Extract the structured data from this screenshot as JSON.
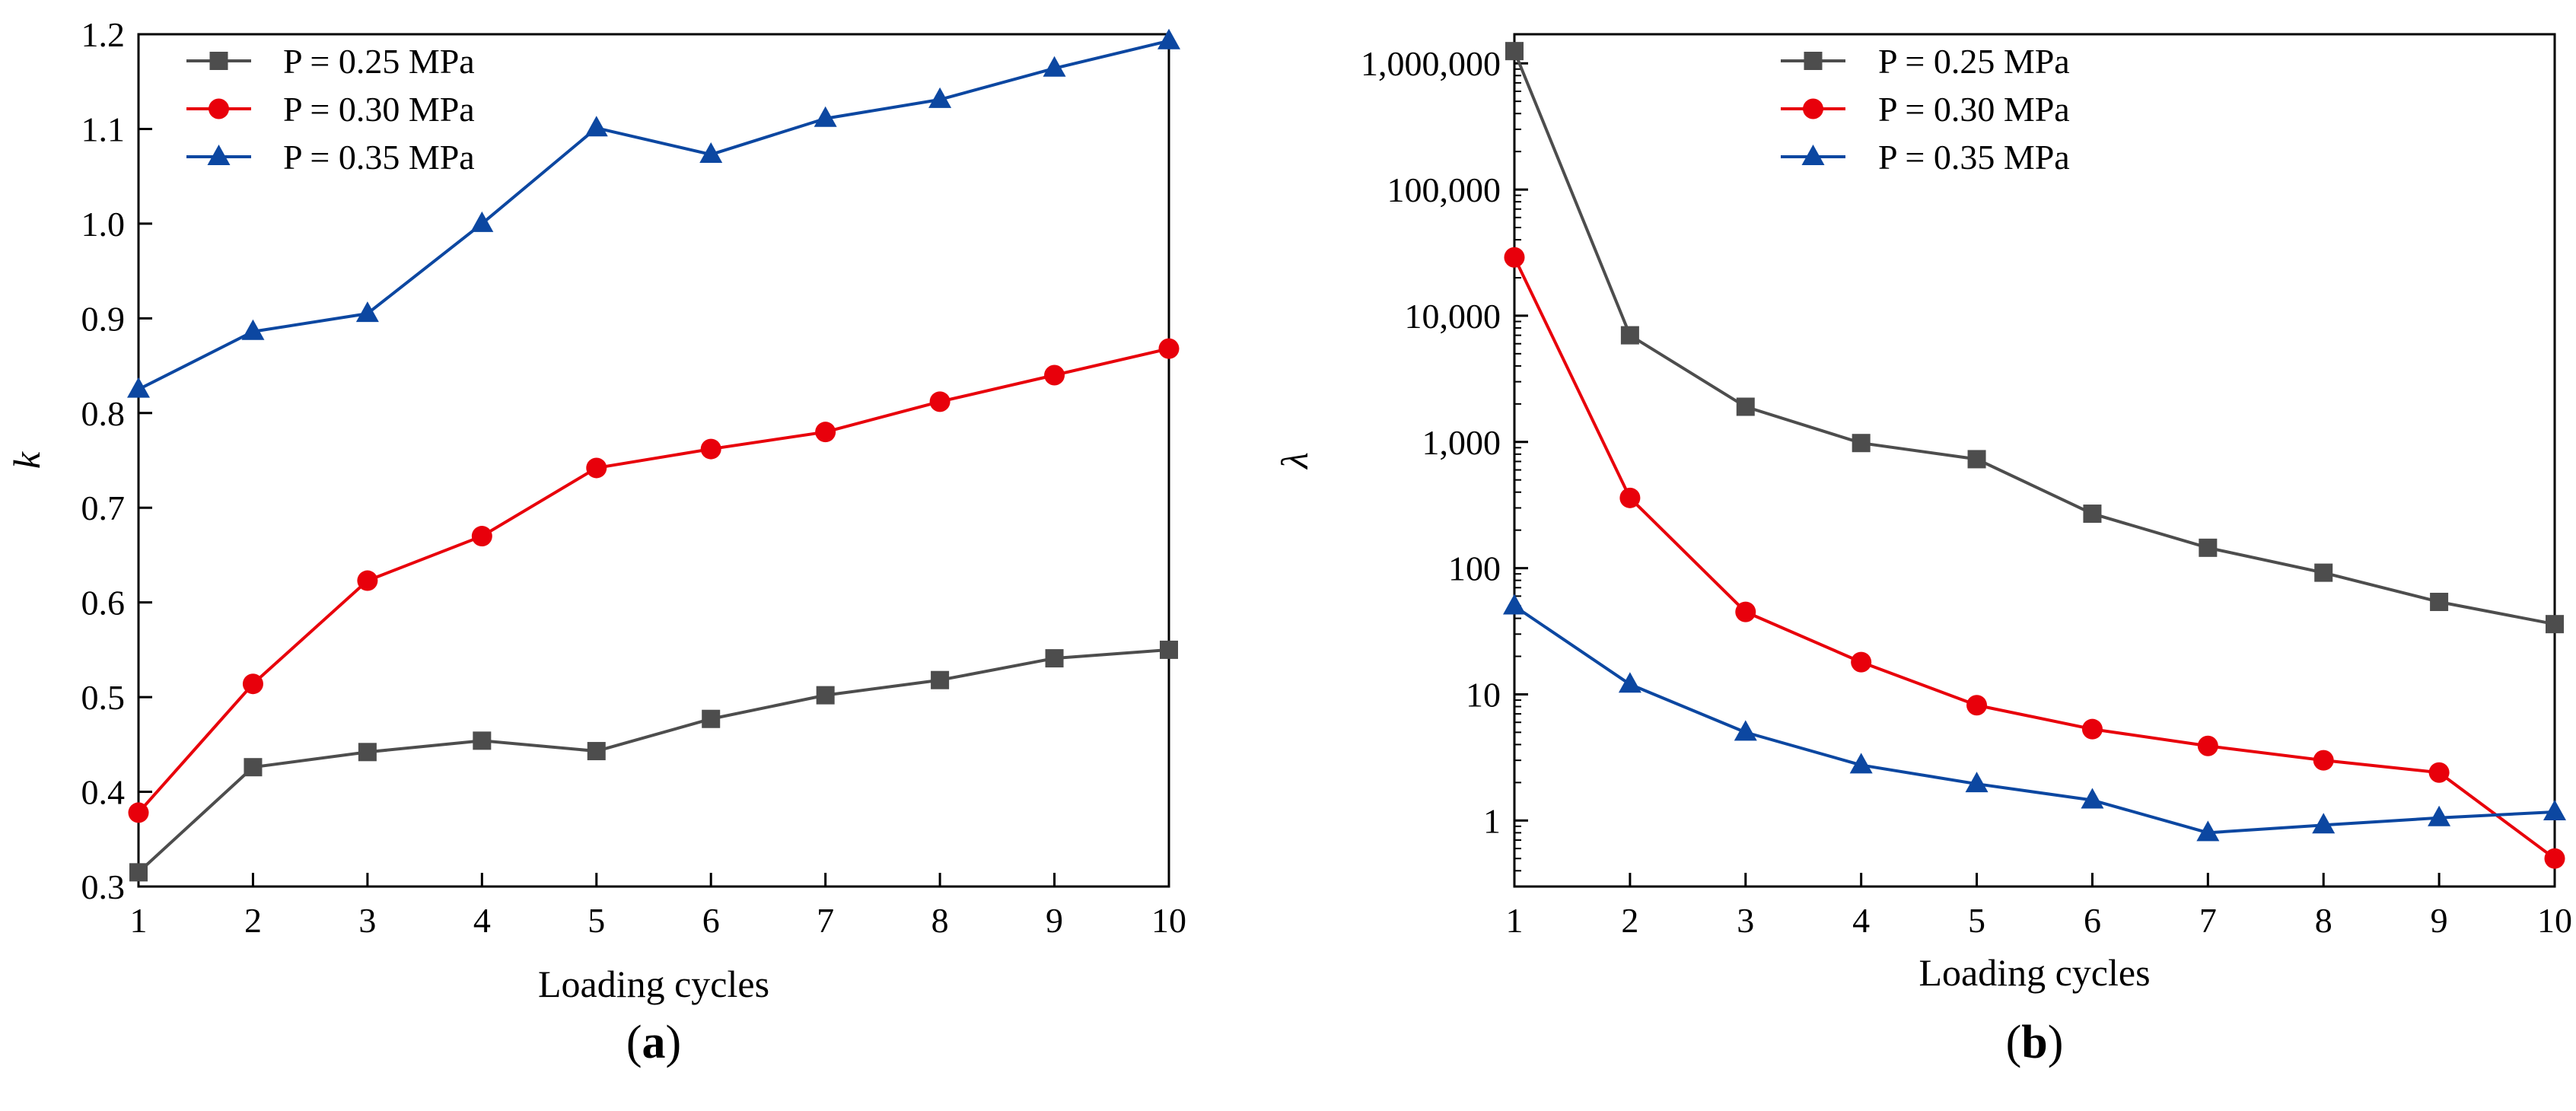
{
  "chart_data": [
    {
      "type": "line",
      "panel_label": "a",
      "xlabel": "Loading cycles",
      "ylabel": "k",
      "x": [
        1,
        2,
        3,
        4,
        5,
        6,
        7,
        8,
        9,
        10
      ],
      "xlim": [
        1,
        10
      ],
      "ylim": [
        0.3,
        1.2
      ],
      "yscale": "linear",
      "xticks": [
        "1",
        "2",
        "3",
        "4",
        "5",
        "6",
        "7",
        "8",
        "9",
        "10"
      ],
      "yticks": [
        0.3,
        0.4,
        0.5,
        0.6,
        0.7,
        0.8,
        0.9,
        1.0,
        1.1,
        1.2
      ],
      "ytick_labels": [
        "0.3",
        "0.4",
        "0.5",
        "0.6",
        "0.7",
        "0.8",
        "0.9",
        "1.0",
        "1.1",
        "1.2"
      ],
      "legend_position": "top-left",
      "series": [
        {
          "name": "P = 0.25 MPa",
          "color": "#4d4d4d",
          "marker": "square",
          "values": [
            0.315,
            0.426,
            0.442,
            0.454,
            0.443,
            0.477,
            0.502,
            0.518,
            0.541,
            0.55
          ]
        },
        {
          "name": "P = 0.30 MPa",
          "color": "#e8000b",
          "marker": "circle",
          "values": [
            0.378,
            0.514,
            0.623,
            0.67,
            0.742,
            0.762,
            0.78,
            0.812,
            0.84,
            0.868
          ]
        },
        {
          "name": "P = 0.35 MPa",
          "color": "#0c47a1",
          "marker": "triangle",
          "values": [
            0.825,
            0.886,
            0.905,
            1.0,
            1.101,
            1.073,
            1.111,
            1.131,
            1.164,
            1.193
          ]
        }
      ]
    },
    {
      "type": "line",
      "panel_label": "b",
      "xlabel": "Loading cycles",
      "ylabel": "λ",
      "x": [
        1,
        2,
        3,
        4,
        5,
        6,
        7,
        8,
        9,
        10
      ],
      "xlim": [
        1,
        10
      ],
      "ylim": [
        0.3,
        1700000
      ],
      "yscale": "log",
      "xticks": [
        "1",
        "2",
        "3",
        "4",
        "5",
        "6",
        "7",
        "8",
        "9",
        "10"
      ],
      "yticks": [
        1,
        10,
        100,
        1000,
        10000,
        100000,
        1000000
      ],
      "ytick_labels": [
        "1",
        "10",
        "100",
        "1,000",
        "10,000",
        "100,000",
        "1,000,000"
      ],
      "legend_position": "top-center",
      "series": [
        {
          "name": "P = 0.25 MPa",
          "color": "#4d4d4d",
          "marker": "square",
          "values": [
            1250000,
            7000,
            1900,
            980,
            730,
            270,
            145,
            92,
            54,
            36
          ]
        },
        {
          "name": "P = 0.30 MPa",
          "color": "#e8000b",
          "marker": "circle",
          "values": [
            29000,
            360,
            45,
            18,
            8.2,
            5.3,
            3.9,
            3.0,
            2.4,
            0.5
          ]
        },
        {
          "name": "P = 0.35 MPa",
          "color": "#0c47a1",
          "marker": "triangle",
          "values": [
            50,
            12,
            5.0,
            2.75,
            1.95,
            1.45,
            0.8,
            0.92,
            1.05,
            1.17
          ]
        }
      ]
    }
  ]
}
